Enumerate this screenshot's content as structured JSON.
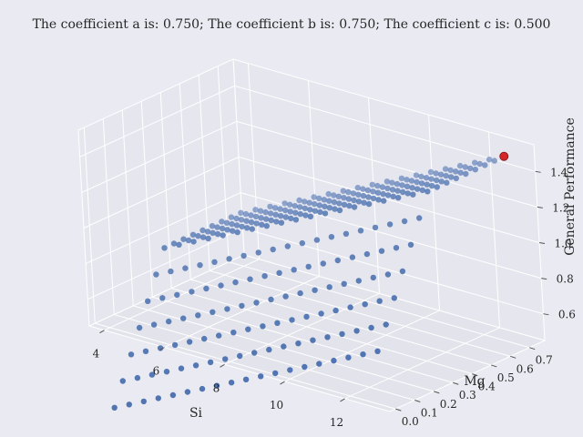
{
  "chart_data": {
    "type": "scatter",
    "title": "The coefficient a is: 0.750; The coefficient b is: 0.750; The coefficient c is: 0.500",
    "xlabel": "Si",
    "ylabel": "Mg",
    "zlabel": "General Performance",
    "x_ticks": [
      "4",
      "6",
      "8",
      "10",
      "12"
    ],
    "y_ticks": [
      "0.0",
      "0.1",
      "0.2",
      "0.3",
      "0.4",
      "0.5",
      "0.6",
      "0.7"
    ],
    "z_ticks": [
      "0.6",
      "0.8",
      "1.0",
      "1.2",
      "1.4"
    ],
    "xlim": [
      3.5,
      13.5
    ],
    "ylim": [
      -0.03,
      0.78
    ],
    "zlim": [
      0.45,
      1.55
    ],
    "grid": true,
    "point_color": "#4c72b0",
    "highlight_color": "#d62728",
    "series": [
      {
        "grid_x": [
          4.0,
          4.5,
          5.0,
          5.5,
          6.0,
          6.5,
          7.0,
          7.5,
          8.0,
          8.5,
          9.0,
          9.5,
          10.0,
          10.5,
          11.0,
          11.5,
          12.0,
          12.5,
          13.0
        ],
        "grid_y": [
          0.0,
          0.05,
          0.1,
          0.15,
          0.2,
          0.25,
          0.3,
          0.35,
          0.4,
          0.45,
          0.5,
          0.55,
          0.6,
          0.65,
          0.7
        ],
        "z_rule": "0.75*(Si-4)/9 + 0.75*min(Mg,0.3)/0.3"
      }
    ],
    "highlight": {
      "x": 13.0,
      "y": 0.7,
      "z": 1.5
    }
  }
}
